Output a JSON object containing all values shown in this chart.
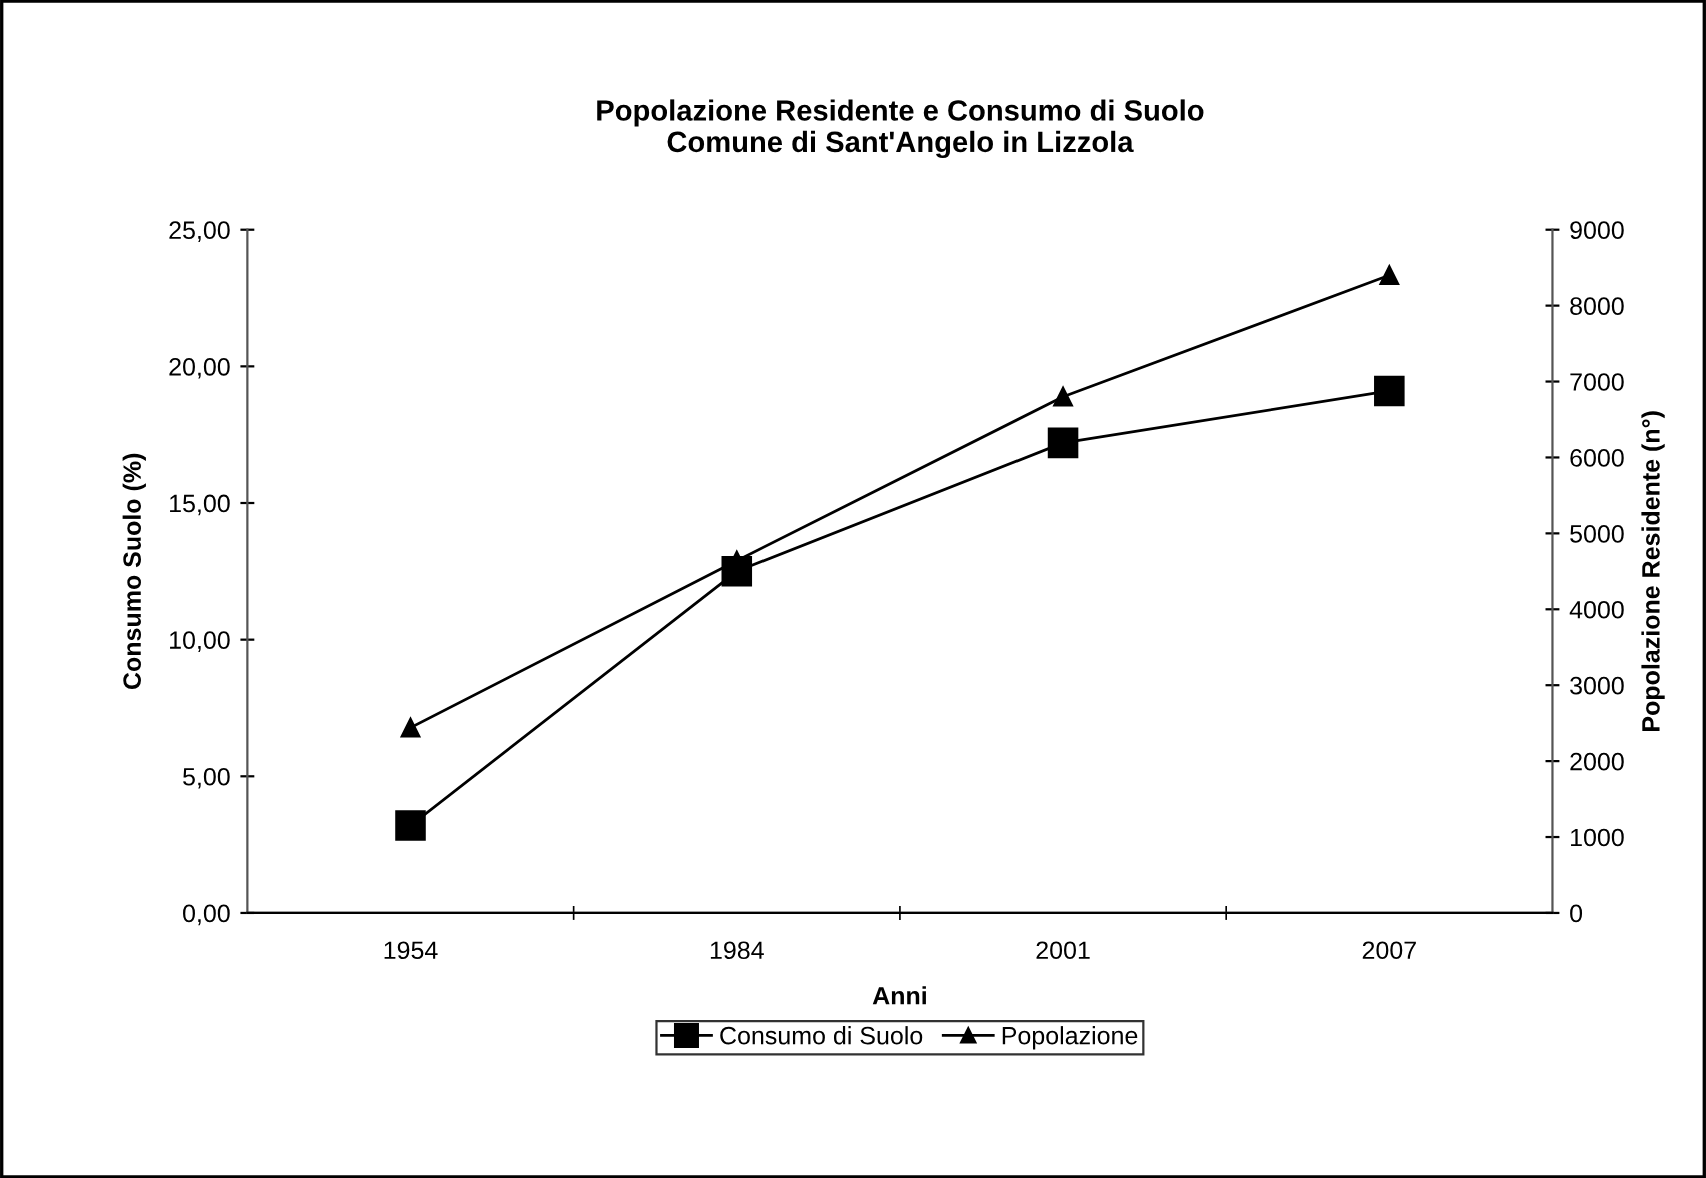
{
  "chart_data": {
    "type": "line",
    "title": "Popolazione Residente e Consumo di Suolo\nComune di Sant'Angelo in Lizzola",
    "xlabel": "Anni",
    "ylabel": "Consumo Suolo (%)",
    "y2label": "Popolazione Residente (n°)",
    "categories": [
      "1954",
      "1984",
      "2001",
      "2007"
    ],
    "series": [
      {
        "name": "Consumo di Suolo",
        "color": "#000000",
        "values": [
          3.2,
          12.5,
          17.2,
          19.1
        ],
        "marker": "square"
      },
      {
        "name": "Popolazione",
        "color": "#000000",
        "values": [
          2440,
          4640,
          6800,
          8400
        ],
        "marker": "triangle",
        "axis": "y2"
      }
    ],
    "ylim": [
      0,
      25
    ],
    "yticks": [
      {
        "value": 0,
        "label": "0,00"
      },
      {
        "value": 5,
        "label": "5,00"
      },
      {
        "value": 10,
        "label": "10,00"
      },
      {
        "value": 15,
        "label": "15,00"
      },
      {
        "value": 20,
        "label": "20,00"
      },
      {
        "value": 25,
        "label": "25,00"
      }
    ],
    "y2lim": [
      0,
      9000
    ],
    "y2ticks": [
      0,
      1000,
      2000,
      3000,
      4000,
      5000,
      6000,
      7000,
      8000,
      9000
    ],
    "grid": false,
    "legend": "bottom",
    "line_style": "solid"
  }
}
